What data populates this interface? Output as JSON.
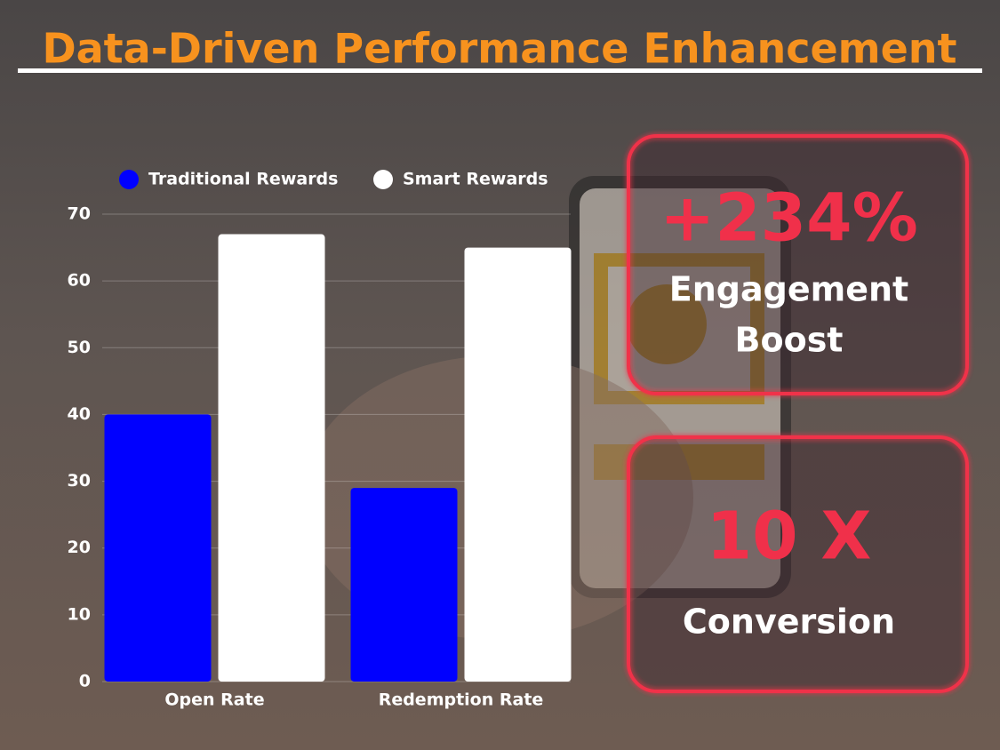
{
  "chart_data": {
    "type": "bar",
    "title": "Data-Driven Performance Enhancement",
    "categories": [
      "Open Rate",
      "Redemption Rate"
    ],
    "series": [
      {
        "name": "Traditional Rewards",
        "color": "#0000ff",
        "values": [
          40,
          29
        ]
      },
      {
        "name": "Smart Rewards",
        "color": "#ffffff",
        "values": [
          67,
          65
        ]
      }
    ],
    "ylim": [
      0,
      70
    ],
    "yticks": [
      0,
      10,
      20,
      30,
      40,
      50,
      60,
      70
    ],
    "grid": true,
    "legend": "top"
  },
  "callouts": [
    {
      "headline": "+234%",
      "lines": [
        "Engagement",
        "Boost"
      ]
    },
    {
      "headline": "10 X",
      "lines": [
        "Conversion"
      ]
    }
  ]
}
